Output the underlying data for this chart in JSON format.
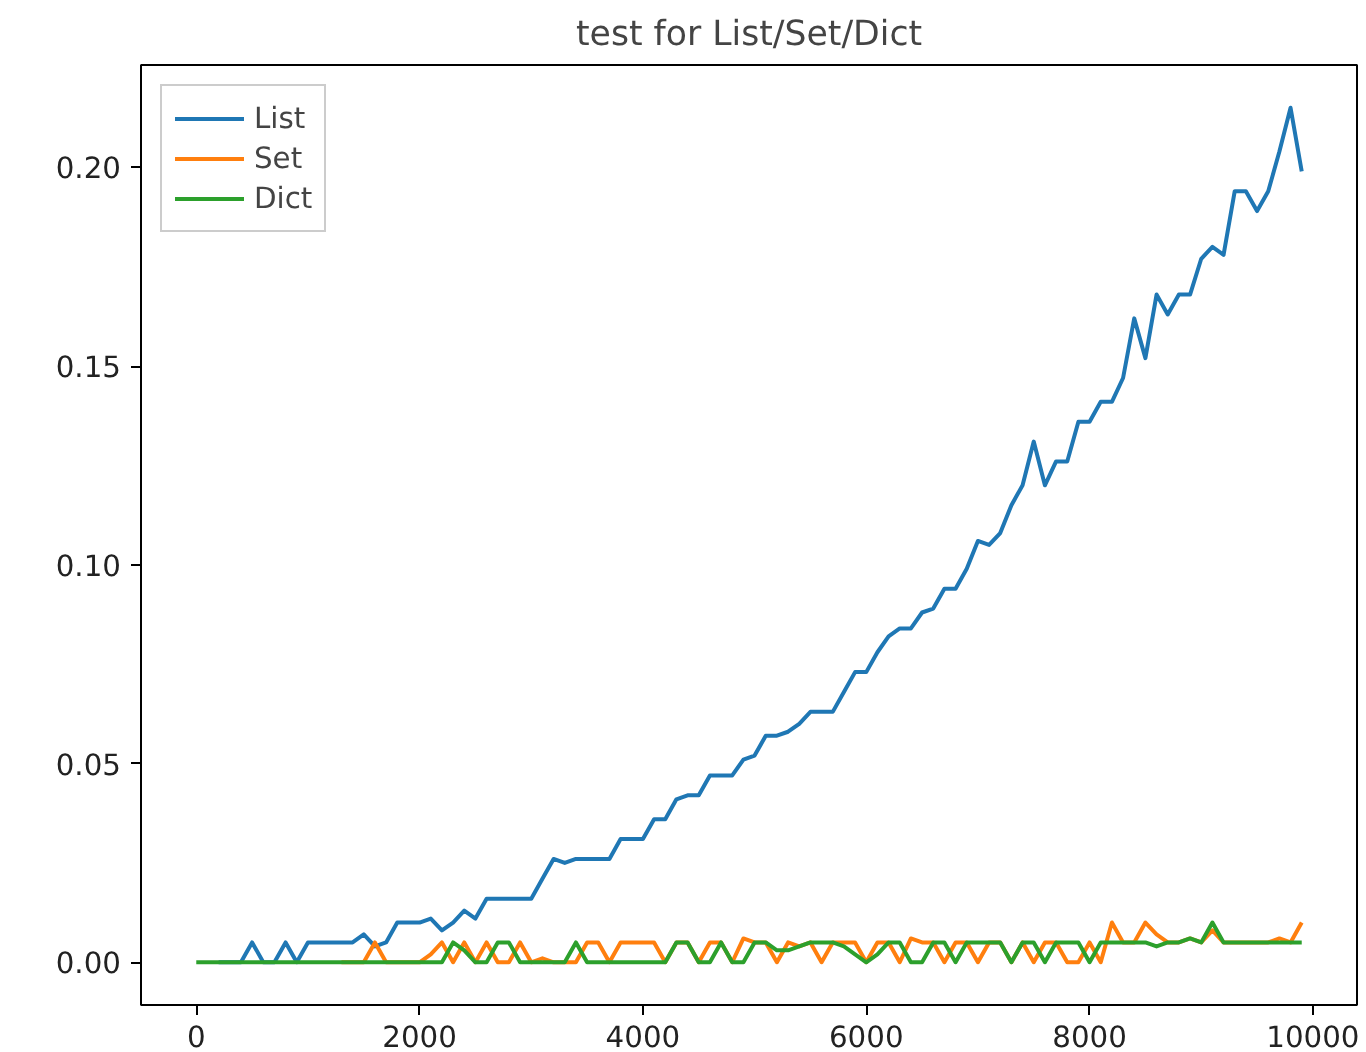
{
  "chart_data": {
    "type": "line",
    "title": "test for List/Set/Dict",
    "x": [
      0,
      100,
      200,
      300,
      400,
      500,
      600,
      700,
      800,
      900,
      1000,
      1100,
      1200,
      1300,
      1400,
      1500,
      1600,
      1700,
      1800,
      1900,
      2000,
      2100,
      2200,
      2300,
      2400,
      2500,
      2600,
      2700,
      2800,
      2900,
      3000,
      3100,
      3200,
      3300,
      3400,
      3500,
      3600,
      3700,
      3800,
      3900,
      4000,
      4100,
      4200,
      4300,
      4400,
      4500,
      4600,
      4700,
      4800,
      4900,
      5000,
      5100,
      5200,
      5300,
      5400,
      5500,
      5600,
      5700,
      5800,
      5900,
      6000,
      6100,
      6200,
      6300,
      6400,
      6500,
      6600,
      6700,
      6800,
      6900,
      7000,
      7100,
      7200,
      7300,
      7400,
      7500,
      7600,
      7700,
      7800,
      7900,
      8000,
      8100,
      8200,
      8300,
      8400,
      8500,
      8600,
      8700,
      8800,
      8900,
      9000,
      9100,
      9200,
      9300,
      9400,
      9500,
      9600,
      9700,
      9800,
      9900
    ],
    "series": [
      {
        "name": "List",
        "color": "#1f77b4",
        "values": [
          null,
          null,
          0,
          0,
          0,
          0.005,
          0,
          0,
          0.005,
          0,
          0.005,
          0.005,
          0.005,
          0.005,
          0.005,
          0.007,
          0.004,
          0.005,
          0.01,
          0.01,
          0.01,
          0.011,
          0.008,
          0.01,
          0.013,
          0.011,
          0.016,
          0.016,
          0.016,
          0.016,
          0.016,
          0.021,
          0.026,
          0.025,
          0.026,
          0.026,
          0.026,
          0.026,
          0.031,
          0.031,
          0.031,
          0.036,
          0.036,
          0.041,
          0.042,
          0.042,
          0.047,
          0.047,
          0.047,
          0.051,
          0.052,
          0.057,
          0.057,
          0.058,
          0.06,
          0.063,
          0.063,
          0.063,
          0.068,
          0.073,
          0.073,
          0.078,
          0.082,
          0.084,
          0.084,
          0.088,
          0.089,
          0.094,
          0.094,
          0.099,
          0.106,
          0.105,
          0.108,
          0.115,
          0.12,
          0.131,
          0.12,
          0.126,
          0.126,
          0.136,
          0.136,
          0.141,
          0.141,
          0.147,
          0.162,
          0.152,
          0.168,
          0.163,
          0.168,
          0.168,
          0.177,
          0.18,
          0.178,
          0.194,
          0.194,
          0.189,
          0.194,
          0.204,
          0.215,
          0.199
        ]
      },
      {
        "name": "Set",
        "color": "#ff7f0e",
        "values": [
          null,
          null,
          null,
          null,
          null,
          null,
          null,
          null,
          null,
          null,
          null,
          null,
          null,
          0,
          0,
          0,
          0.005,
          0,
          0,
          0,
          0,
          0.002,
          0.005,
          0,
          0.005,
          0,
          0.005,
          0,
          0,
          0.005,
          0,
          0.001,
          0,
          0,
          0,
          0.005,
          0.005,
          0,
          0.005,
          0.005,
          0.005,
          0.005,
          0,
          0.005,
          0.005,
          0,
          0.005,
          0.005,
          0,
          0.006,
          0.005,
          0.005,
          0,
          0.005,
          0.004,
          0.005,
          0,
          0.005,
          0.005,
          0.005,
          0,
          0.005,
          0.005,
          0,
          0.006,
          0.005,
          0.005,
          0,
          0.005,
          0.005,
          0,
          0.005,
          0.005,
          0,
          0.005,
          0,
          0.005,
          0.005,
          0,
          0,
          0.005,
          0,
          0.01,
          0.005,
          0.005,
          0.01,
          0.007,
          0.005,
          0.005,
          0.006,
          0.005,
          0.008,
          0.005,
          0.005,
          0.005,
          0.005,
          0.005,
          0.006,
          0.005,
          0.01
        ]
      },
      {
        "name": "Dict",
        "color": "#2ca02c",
        "values": [
          0,
          0,
          0,
          0,
          0,
          0,
          0,
          0,
          0,
          0,
          0,
          0,
          0,
          0,
          0,
          0,
          0,
          0,
          0,
          0,
          0,
          0,
          0,
          0.005,
          0.003,
          0,
          0,
          0.005,
          0.005,
          0,
          0,
          0,
          0,
          0,
          0.005,
          0,
          0,
          0,
          0,
          0,
          0,
          0,
          0,
          0.005,
          0.005,
          0,
          0,
          0.005,
          0,
          0,
          0.005,
          0.005,
          0.003,
          0.003,
          0.004,
          0.005,
          0.005,
          0.005,
          0.004,
          0.002,
          0,
          0.002,
          0.005,
          0.005,
          0,
          0,
          0.005,
          0.005,
          0,
          0.005,
          0.005,
          0.005,
          0.005,
          0,
          0.005,
          0.005,
          0,
          0.005,
          0.005,
          0.005,
          0,
          0.005,
          0.005,
          0.005,
          0.005,
          0.005,
          0.004,
          0.005,
          0.005,
          0.006,
          0.005,
          0.01,
          0.005,
          0.005,
          0.005,
          0.005,
          0.005,
          0.005,
          0.005,
          0.005
        ]
      }
    ],
    "xlim": [
      -495,
      10395
    ],
    "ylim": [
      -0.01075,
      0.22575
    ],
    "xticks": [
      0,
      2000,
      4000,
      6000,
      8000,
      10000
    ],
    "yticks": [
      {
        "value": 0,
        "label": "0.00"
      },
      {
        "value": 0.05,
        "label": "0.05"
      },
      {
        "value": 0.1,
        "label": "0.10"
      },
      {
        "value": 0.15,
        "label": "0.15"
      },
      {
        "value": 0.2,
        "label": "0.20"
      }
    ],
    "grid": false,
    "legend": "top left",
    "line_style": "solid"
  }
}
